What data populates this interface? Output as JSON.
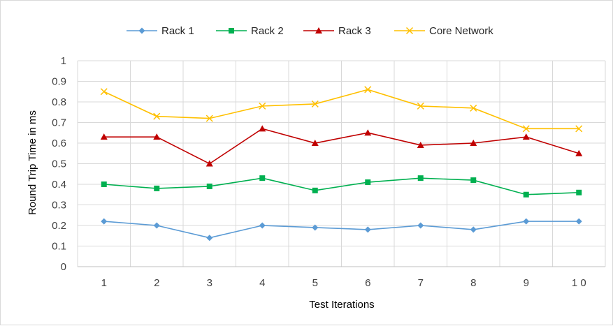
{
  "chart_data": {
    "type": "line",
    "title": "",
    "xlabel": "Test Iterations",
    "ylabel": "Round Trip Time in ms",
    "categories": [
      "1",
      "2",
      "3",
      "4",
      "5",
      "6",
      "7",
      "8",
      "9",
      "1 0"
    ],
    "ylim": [
      0,
      1
    ],
    "yticks": [
      "0",
      "0.1",
      "0.2",
      "0.3",
      "0.4",
      "0.5",
      "0.6",
      "0.7",
      "0.8",
      "0.9",
      "1"
    ],
    "grid": true,
    "legend_position": "top",
    "series": [
      {
        "name": "Rack 1",
        "color": "#5b9bd5",
        "marker": "diamond",
        "values": [
          0.22,
          0.2,
          0.14,
          0.2,
          0.19,
          0.18,
          0.2,
          0.18,
          0.22,
          0.22
        ]
      },
      {
        "name": "Rack 2",
        "color": "#00b050",
        "marker": "square",
        "values": [
          0.4,
          0.38,
          0.39,
          0.43,
          0.37,
          0.41,
          0.43,
          0.42,
          0.35,
          0.36
        ]
      },
      {
        "name": "Rack 3",
        "color": "#c00000",
        "marker": "triangle",
        "values": [
          0.63,
          0.63,
          0.5,
          0.67,
          0.6,
          0.65,
          0.59,
          0.6,
          0.63,
          0.55
        ]
      },
      {
        "name": "Core Network",
        "color": "#ffc000",
        "marker": "x",
        "values": [
          0.85,
          0.73,
          0.72,
          0.78,
          0.79,
          0.86,
          0.78,
          0.77,
          0.67,
          0.67
        ]
      }
    ]
  }
}
